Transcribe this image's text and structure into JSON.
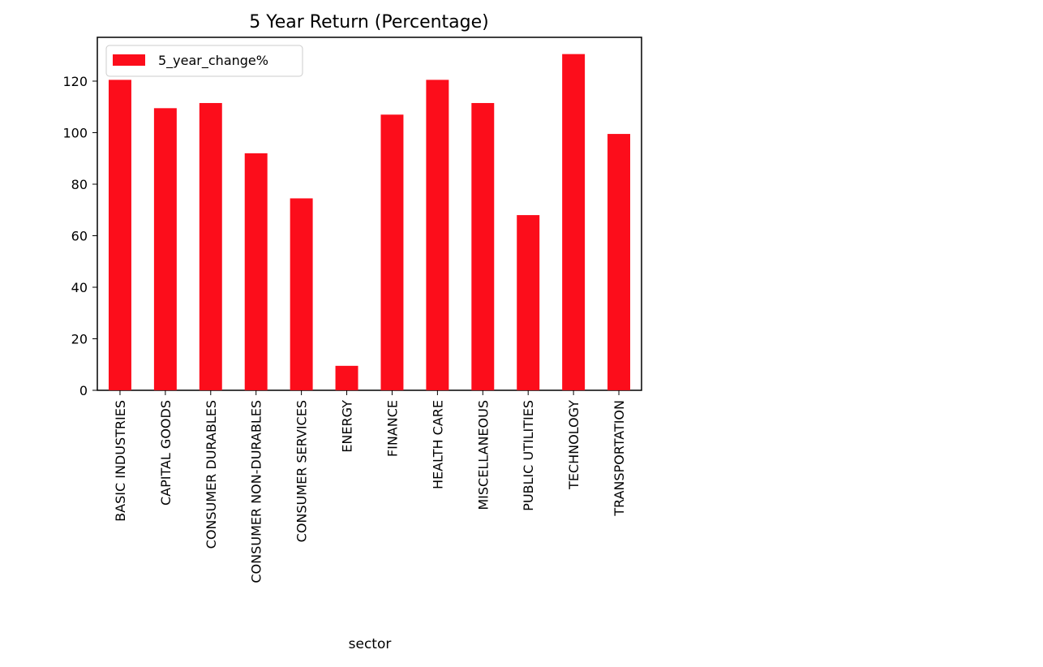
{
  "chart_data": {
    "type": "bar",
    "title": "5 Year Return (Percentage)",
    "xlabel": "sector",
    "ylabel": "",
    "categories": [
      "BASIC INDUSTRIES",
      "CAPITAL GOODS",
      "CONSUMER DURABLES",
      "CONSUMER NON-DURABLES",
      "CONSUMER SERVICES",
      "ENERGY",
      "FINANCE",
      "HEALTH CARE",
      "MISCELLANEOUS",
      "PUBLIC UTILITIES",
      "TECHNOLOGY",
      "TRANSPORTATION"
    ],
    "series": [
      {
        "name": "5_year_change%",
        "values": [
          120.5,
          109.5,
          111.5,
          92.0,
          74.5,
          9.5,
          107.0,
          120.5,
          111.5,
          68.0,
          130.5,
          99.5
        ],
        "color": "#fc0d1b"
      }
    ],
    "ylim": [
      0,
      137
    ],
    "yticks": [
      0,
      20,
      40,
      60,
      80,
      100,
      120
    ],
    "grid": false,
    "legend": {
      "placement": "upper-left",
      "entries": [
        "5_year_change%"
      ]
    }
  }
}
